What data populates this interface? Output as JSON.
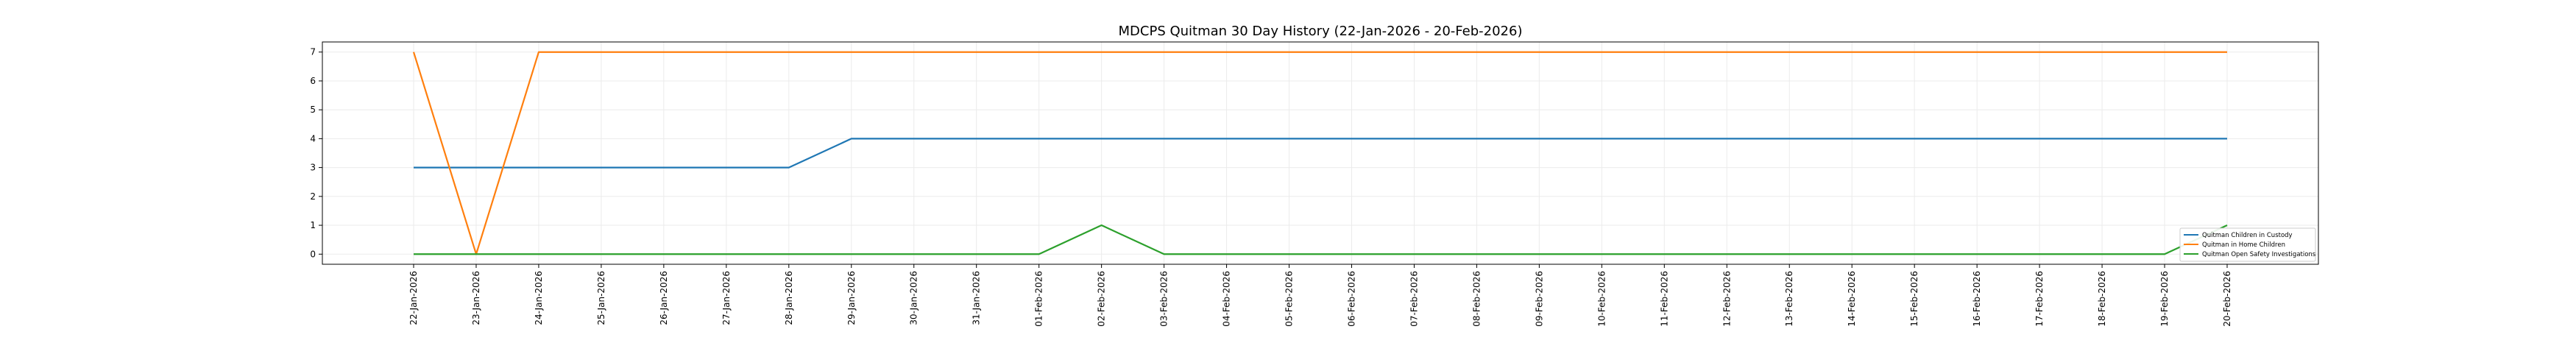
{
  "chart_data": {
    "type": "line",
    "title": "MDCPS Quitman 30 Day History (22-Jan-2026 - 20-Feb-2026)",
    "xlabel": "",
    "ylabel": "",
    "x": [
      "22-Jan-2026",
      "23-Jan-2026",
      "24-Jan-2026",
      "25-Jan-2026",
      "26-Jan-2026",
      "27-Jan-2026",
      "28-Jan-2026",
      "29-Jan-2026",
      "30-Jan-2026",
      "31-Jan-2026",
      "01-Feb-2026",
      "02-Feb-2026",
      "03-Feb-2026",
      "04-Feb-2026",
      "05-Feb-2026",
      "06-Feb-2026",
      "07-Feb-2026",
      "08-Feb-2026",
      "09-Feb-2026",
      "10-Feb-2026",
      "11-Feb-2026",
      "12-Feb-2026",
      "13-Feb-2026",
      "14-Feb-2026",
      "15-Feb-2026",
      "16-Feb-2026",
      "17-Feb-2026",
      "18-Feb-2026",
      "19-Feb-2026",
      "20-Feb-2026"
    ],
    "series": [
      {
        "name": "Quitman Children in Custody",
        "color": "#1f77b4",
        "values": [
          3,
          3,
          3,
          3,
          3,
          3,
          3,
          4,
          4,
          4,
          4,
          4,
          4,
          4,
          4,
          4,
          4,
          4,
          4,
          4,
          4,
          4,
          4,
          4,
          4,
          4,
          4,
          4,
          4,
          4
        ]
      },
      {
        "name": "Quitman in Home Children",
        "color": "#ff7f0e",
        "values": [
          7,
          0,
          7,
          7,
          7,
          7,
          7,
          7,
          7,
          7,
          7,
          7,
          7,
          7,
          7,
          7,
          7,
          7,
          7,
          7,
          7,
          7,
          7,
          7,
          7,
          7,
          7,
          7,
          7,
          7
        ]
      },
      {
        "name": "Quitman Open Safety Investigations",
        "color": "#2ca02c",
        "values": [
          0,
          0,
          0,
          0,
          0,
          0,
          0,
          0,
          0,
          0,
          0,
          1,
          0,
          0,
          0,
          0,
          0,
          0,
          0,
          0,
          0,
          0,
          0,
          0,
          0,
          0,
          0,
          0,
          0,
          1
        ]
      }
    ],
    "yticks": [
      0,
      1,
      2,
      3,
      4,
      5,
      6,
      7
    ],
    "ylim": [
      -0.35,
      7.35
    ],
    "grid": true,
    "legend_position": "lower-right"
  }
}
